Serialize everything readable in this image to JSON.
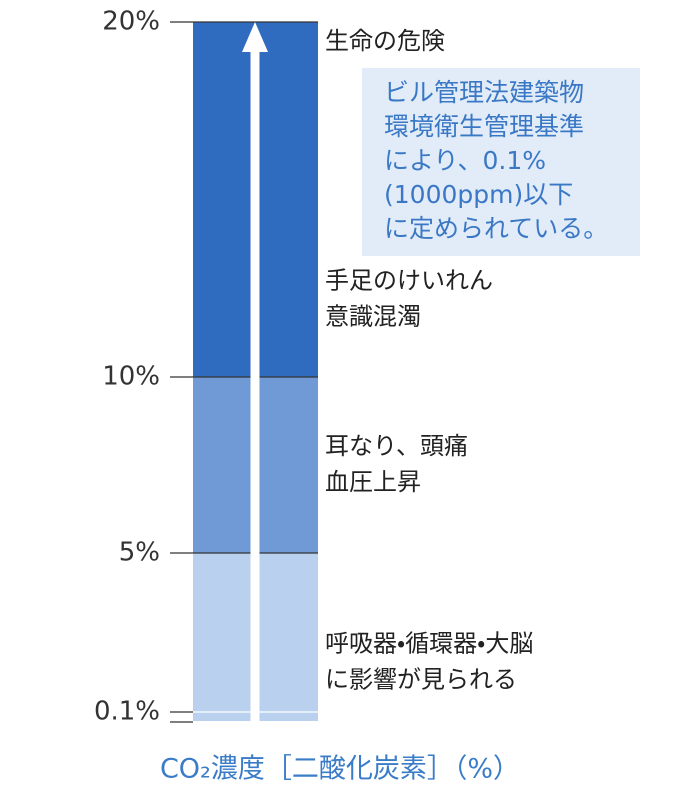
{
  "chart_data": {
    "type": "scale-bar",
    "title": "CO₂濃度［二酸化炭素］（%）",
    "yticks": [
      {
        "value": 0.1,
        "label": "0.1%"
      },
      {
        "value": 5,
        "label": "5%"
      },
      {
        "value": 10,
        "label": "10%"
      },
      {
        "value": 20,
        "label": "20%"
      }
    ],
    "bands": [
      {
        "lines": [
          "呼吸器・循環器・大脳",
          "に影響が見られる"
        ],
        "color": "#b9d0ee"
      },
      {
        "lines": [
          "耳なり、頭痛",
          "血圧上昇"
        ],
        "color": "#6f9ad6"
      },
      {
        "lines": [
          "手足のけいれん",
          "意識混濁"
        ],
        "color": "#2f6bbf"
      }
    ],
    "top_label": "生命の危険",
    "note": [
      "ビル管理法建築物",
      "環境衛生管理基準",
      "により、0.1%",
      "(1000ppm)以下",
      "に定められている。"
    ]
  }
}
